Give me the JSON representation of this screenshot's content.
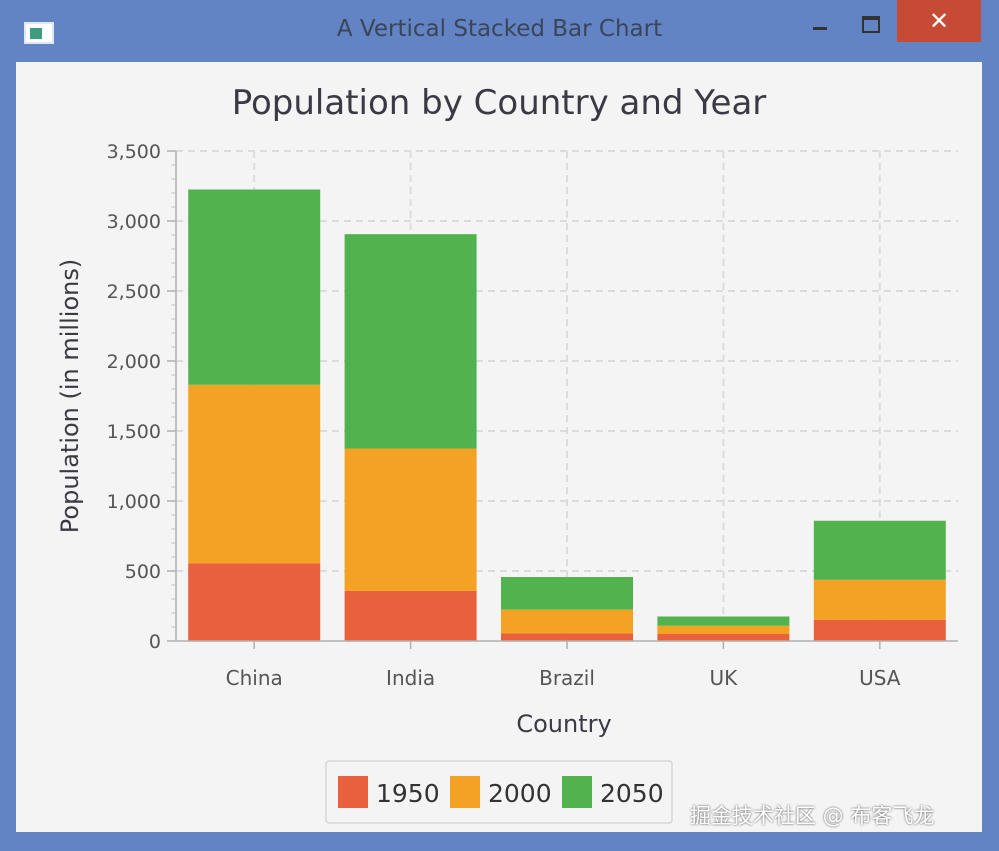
{
  "window": {
    "title": "A Vertical Stacked Bar Chart",
    "close_glyph": "✕"
  },
  "watermark": "掘金技术社区 @ 布客飞龙",
  "chart_data": {
    "type": "bar",
    "stacked": true,
    "title": "Population by Country and Year",
    "xlabel": "Country",
    "ylabel": "Population (in millions)",
    "categories": [
      "China",
      "India",
      "Brazil",
      "UK",
      "USA"
    ],
    "series": [
      {
        "name": "1950",
        "color": "#e8603c",
        "values": [
          555,
          358,
          54,
          50,
          152
        ]
      },
      {
        "name": "2000",
        "color": "#f3a224",
        "values": [
          1275,
          1017,
          170,
          59,
          285
        ]
      },
      {
        "name": "2050",
        "color": "#52b34e",
        "values": [
          1395,
          1531,
          233,
          66,
          422
        ]
      }
    ],
    "ylim": [
      0,
      3500
    ],
    "yticks": [
      0,
      500,
      1000,
      1500,
      2000,
      2500,
      3000,
      3500
    ],
    "ytick_labels": [
      "0",
      "500",
      "1,000",
      "1,500",
      "2,000",
      "2,500",
      "3,000",
      "3,500"
    ],
    "grid": true,
    "legend_position": "bottom"
  }
}
